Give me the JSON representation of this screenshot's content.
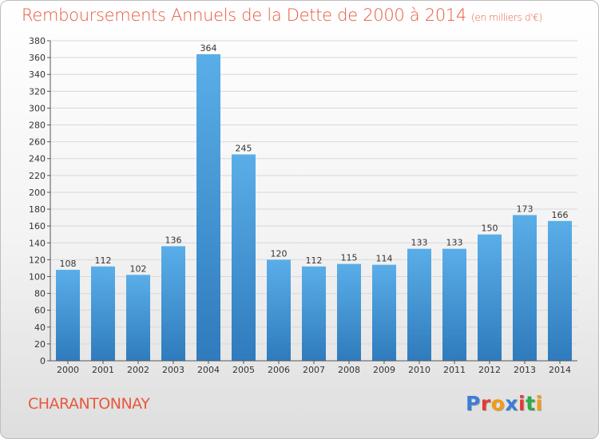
{
  "header": {
    "title": "Remboursements Annuels de la Dette de 2000 à 2014",
    "subtitle": "(en milliers d'€)"
  },
  "footer": {
    "commune": "CHARANTONNAY",
    "logo_letters": [
      "P",
      "r",
      "o",
      "x",
      "i",
      "t",
      "i"
    ],
    "logo_colors": [
      "#3b7dd8",
      "#e03c31",
      "#f39c12",
      "#3b7dd8",
      "#e03c31",
      "#2eaa46",
      "#f39c12"
    ]
  },
  "chart_data": {
    "type": "bar",
    "title": "Remboursements Annuels de la Dette de 2000 à 2014",
    "subtitle": "(en milliers d'€)",
    "categories": [
      "2000",
      "2001",
      "2002",
      "2003",
      "2004",
      "2005",
      "2006",
      "2007",
      "2008",
      "2009",
      "2010",
      "2011",
      "2012",
      "2013",
      "2014"
    ],
    "values": [
      108,
      112,
      102,
      136,
      364,
      245,
      120,
      112,
      115,
      114,
      133,
      133,
      150,
      173,
      166
    ],
    "ylim": [
      0,
      380
    ],
    "yticks": [
      0,
      20,
      40,
      60,
      80,
      100,
      120,
      140,
      160,
      180,
      200,
      220,
      240,
      260,
      280,
      300,
      320,
      340,
      360,
      380
    ],
    "grid": true,
    "colors": {
      "bar_top": "#5aaee8",
      "bar_bottom": "#2f7bbd",
      "axis": "#555555",
      "grid": "#d8d8d8",
      "accent": "#e8583c"
    }
  }
}
